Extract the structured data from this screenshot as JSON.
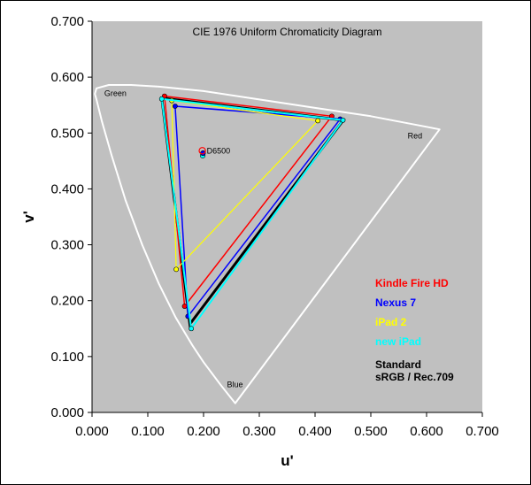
{
  "chart_data": {
    "type": "scatter",
    "title": "CIE 1976 Uniform Chromaticity Diagram",
    "xlabel": "u'",
    "ylabel": "v'",
    "xlim": [
      0,
      0.7
    ],
    "ylim": [
      0,
      0.7
    ],
    "x_ticks": [
      "0.000",
      "0.100",
      "0.200",
      "0.300",
      "0.400",
      "0.500",
      "0.600",
      "0.700"
    ],
    "y_ticks": [
      "0.000",
      "0.100",
      "0.200",
      "0.300",
      "0.400",
      "0.500",
      "0.600",
      "0.700"
    ],
    "background": "#c0c0c0",
    "locus_color": "#ffffff",
    "locus": [
      [
        0.2568,
        0.0165
      ],
      [
        0.25,
        0.025
      ],
      [
        0.23,
        0.05
      ],
      [
        0.2,
        0.09
      ],
      [
        0.18,
        0.12
      ],
      [
        0.15,
        0.17
      ],
      [
        0.12,
        0.23
      ],
      [
        0.09,
        0.3
      ],
      [
        0.06,
        0.38
      ],
      [
        0.035,
        0.46
      ],
      [
        0.018,
        0.52
      ],
      [
        0.008,
        0.56
      ],
      [
        0.005,
        0.57
      ],
      [
        0.008,
        0.58
      ],
      [
        0.03,
        0.586
      ],
      [
        0.07,
        0.586
      ],
      [
        0.12,
        0.583
      ],
      [
        0.2,
        0.575
      ],
      [
        0.3,
        0.56
      ],
      [
        0.4,
        0.545
      ],
      [
        0.5,
        0.53
      ],
      [
        0.6,
        0.511
      ],
      [
        0.6234,
        0.5065
      ]
    ],
    "locus_labels": [
      {
        "text": "Green",
        "u": 0.022,
        "v": 0.566
      },
      {
        "text": "Red",
        "u": 0.566,
        "v": 0.49
      },
      {
        "text": "Blue",
        "u": 0.242,
        "v": 0.045
      }
    ],
    "series": [
      {
        "name": "Standard sRGB / Rec.709",
        "color": "#000000",
        "width": 3,
        "marker": false,
        "points": [
          [
            0.125,
            0.5625
          ],
          [
            0.4507,
            0.5229
          ],
          [
            0.1754,
            0.1579
          ]
        ]
      },
      {
        "name": "Kindle Fire HD",
        "color": "#ff0000",
        "width": 1.5,
        "marker": true,
        "points": [
          [
            0.13,
            0.566
          ],
          [
            0.43,
            0.53
          ],
          [
            0.166,
            0.19
          ]
        ]
      },
      {
        "name": "Nexus 7",
        "color": "#0000ff",
        "width": 1.5,
        "marker": true,
        "points": [
          [
            0.149,
            0.548
          ],
          [
            0.445,
            0.525
          ],
          [
            0.172,
            0.172
          ]
        ]
      },
      {
        "name": "iPad 2",
        "color": "#ffff00",
        "width": 1.2,
        "marker": true,
        "points": [
          [
            0.143,
            0.558
          ],
          [
            0.405,
            0.522
          ],
          [
            0.151,
            0.256
          ]
        ]
      },
      {
        "name": "new iPad",
        "color": "#00ffff",
        "width": 2,
        "marker": true,
        "points": [
          [
            0.125,
            0.561
          ],
          [
            0.45,
            0.523
          ],
          [
            0.178,
            0.15
          ]
        ]
      }
    ],
    "whitepoint": {
      "label": "D6500",
      "ref": {
        "u": 0.1978,
        "v": 0.4683,
        "color": "#ff0000"
      },
      "measured": [
        {
          "u": 0.1985,
          "v": 0.4595,
          "color": "#00ffff"
        },
        {
          "u": 0.199,
          "v": 0.464,
          "color": "#0000ff"
        }
      ]
    },
    "legend": {
      "placement": "right",
      "entries": [
        {
          "text": "Kindle Fire HD",
          "color": "#ff0000"
        },
        {
          "text": "Nexus 7",
          "color": "#0000ff"
        },
        {
          "text": "iPad 2",
          "color": "#ffff00"
        },
        {
          "text": "new iPad",
          "color": "#00ffff"
        }
      ],
      "standard_lines": [
        "Standard",
        "sRGB / Rec.709"
      ],
      "standard_color": "#000000"
    }
  }
}
